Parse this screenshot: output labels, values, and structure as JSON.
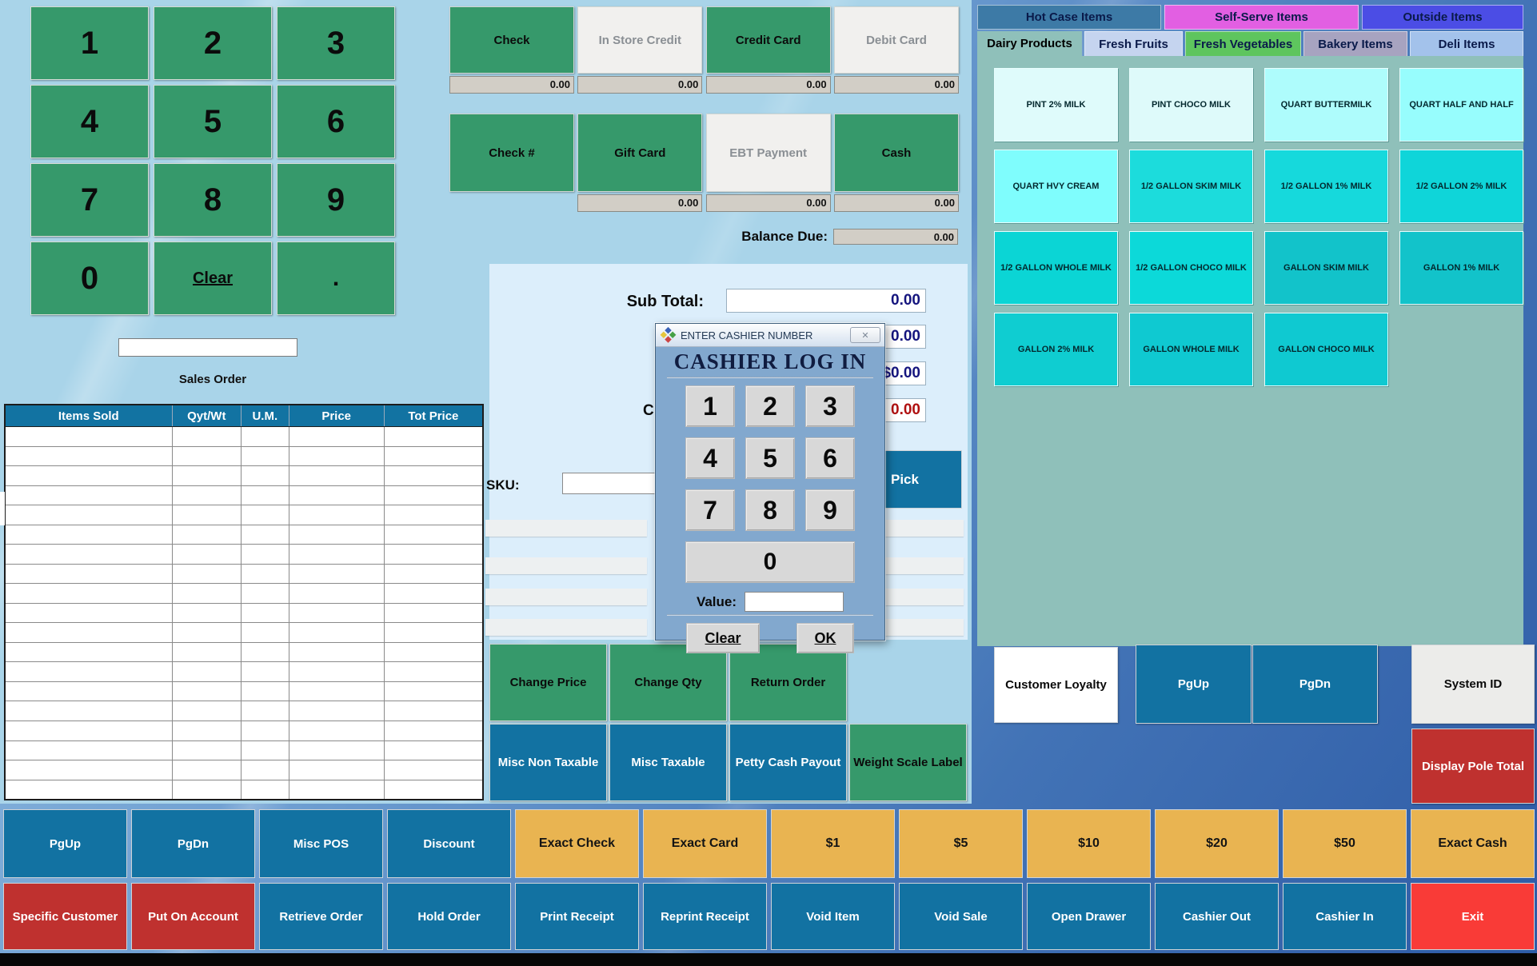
{
  "numpad": {
    "keys": [
      "1",
      "2",
      "3",
      "4",
      "5",
      "6",
      "7",
      "8",
      "9",
      "0",
      "Clear",
      "."
    ],
    "entry_value": "",
    "sales_order_label": "Sales Order"
  },
  "order_table": {
    "headers": [
      "Items Sold",
      "Qyt/Wt",
      "U.M.",
      "Price",
      "Tot Price"
    ],
    "empty_rows": 19
  },
  "payments": {
    "row1": [
      {
        "label": "Check",
        "style": "green",
        "amount": "0.00"
      },
      {
        "label": "In Store Credit",
        "style": "light",
        "amount": "0.00"
      },
      {
        "label": "Credit Card",
        "style": "green",
        "amount": "0.00"
      },
      {
        "label": "Debit Card",
        "style": "light",
        "amount": "0.00"
      }
    ],
    "row2": [
      {
        "label": "Check #",
        "style": "green",
        "amount": null
      },
      {
        "label": "Gift Card",
        "style": "green",
        "amount": "0.00"
      },
      {
        "label": "EBT Payment",
        "style": "light",
        "amount": "0.00"
      },
      {
        "label": "Cash",
        "style": "green",
        "amount": "0.00"
      }
    ],
    "balance_due_label": "Balance Due:",
    "balance_due_value": "0.00"
  },
  "totals": {
    "sub_total_label": "Sub Total:",
    "sub_total_value": "0.00",
    "tax_value": "0.00",
    "total_value": "$0.00",
    "change_label": "Change:",
    "change_value": "0.00"
  },
  "sku": {
    "label": "SKU:",
    "value": "",
    "pick_label": "Pick"
  },
  "mid_buttons": {
    "green_row": [
      {
        "label": "Change Price",
        "style": "green"
      },
      {
        "label": "Change Qty",
        "style": "green"
      },
      {
        "label": "Return Order",
        "style": "green"
      }
    ],
    "blue_row": [
      {
        "label": "Misc Non Taxable",
        "style": "blue"
      },
      {
        "label": "Misc Taxable",
        "style": "blue"
      },
      {
        "label": "Petty Cash Payout",
        "style": "blue"
      },
      {
        "label": "Weight Scale Label",
        "style": "green"
      }
    ]
  },
  "right_panel": {
    "top_tabs": [
      {
        "label": "Hot Case Items",
        "color": "#3d7aa6"
      },
      {
        "label": "Self-Serve Items",
        "color": "#e25fe2"
      },
      {
        "label": "Outside Items",
        "color": "#4b4de5"
      }
    ],
    "category_tabs": [
      {
        "label": "Dairy Products",
        "color": "#8fc0ba",
        "selected": true
      },
      {
        "label": "Fresh Fruits",
        "color": "#c5d4ef"
      },
      {
        "label": "Fresh Vegetables",
        "color": "#5ec55e"
      },
      {
        "label": "Bakery Items",
        "color": "#a7a3c0"
      },
      {
        "label": "Deli Items",
        "color": "#a3c2eb"
      }
    ],
    "products": [
      {
        "label": "PINT 2% MILK",
        "color": "#dffbfb"
      },
      {
        "label": "PINT CHOCO MILK",
        "color": "#defafa"
      },
      {
        "label": "QUART BUTTERMILK",
        "color": "#aefcfc"
      },
      {
        "label": "QUART HALF AND HALF",
        "color": "#97fdfd"
      },
      {
        "label": "QUART HVY CREAM",
        "color": "#7ffdfd"
      },
      {
        "label": "1/2 GALLON SKIM MILK",
        "color": "#1cdcdc"
      },
      {
        "label": "1/2 GALLON 1% MILK",
        "color": "#16d9dc"
      },
      {
        "label": "1/2 GALLON 2% MILK",
        "color": "#0fd5d9"
      },
      {
        "label": "1/2 GALLON WHOLE MILK",
        "color": "#0bd5d5"
      },
      {
        "label": "1/2 GALLON CHOCO MILK",
        "color": "#0cd9d9"
      },
      {
        "label": "GALLON SKIM MILK",
        "color": "#12c3ca"
      },
      {
        "label": "GALLON 1% MILK",
        "color": "#12c3ca"
      },
      {
        "label": "GALLON 2% MILK",
        "color": "#0fcdd1"
      },
      {
        "label": "GALLON WHOLE MILK",
        "color": "#0fc9d1"
      },
      {
        "label": "GALLON CHOCO MILK",
        "color": "#0fc9d1"
      }
    ],
    "side_buttons": {
      "customer_loyalty": "Customer Loyalty",
      "pgup": "PgUp",
      "pgdn": "PgDn",
      "system_id": "System ID",
      "display_pole_total": "Display Pole Total"
    }
  },
  "bottom_rows": {
    "row1": [
      {
        "label": "PgUp",
        "style": "blue"
      },
      {
        "label": "PgDn",
        "style": "blue"
      },
      {
        "label": "Misc POS",
        "style": "blue"
      },
      {
        "label": "Discount",
        "style": "blue"
      },
      {
        "label": "Exact Check",
        "style": "orange"
      },
      {
        "label": "Exact Card",
        "style": "orange"
      },
      {
        "label": "$1",
        "style": "orange"
      },
      {
        "label": "$5",
        "style": "orange"
      },
      {
        "label": "$10",
        "style": "orange"
      },
      {
        "label": "$20",
        "style": "orange"
      },
      {
        "label": "$50",
        "style": "orange"
      },
      {
        "label": "Exact Cash",
        "style": "orange"
      }
    ],
    "row2": [
      {
        "label": "Specific Customer",
        "style": "red"
      },
      {
        "label": "Put On Account",
        "style": "red"
      },
      {
        "label": "Retrieve Order",
        "style": "blue"
      },
      {
        "label": "Hold Order",
        "style": "blue"
      },
      {
        "label": "Print Receipt",
        "style": "blue"
      },
      {
        "label": "Reprint Receipt",
        "style": "blue"
      },
      {
        "label": "Void Item",
        "style": "blue"
      },
      {
        "label": "Void Sale",
        "style": "blue"
      },
      {
        "label": "Open Drawer",
        "style": "blue"
      },
      {
        "label": "Cashier Out",
        "style": "blue"
      },
      {
        "label": "Cashier In",
        "style": "blue"
      },
      {
        "label": "Exit",
        "style": "exit"
      }
    ]
  },
  "dialog": {
    "title": "ENTER CASHIER NUMBER",
    "heading": "CASHIER LOG IN",
    "keys": [
      "1",
      "2",
      "3",
      "4",
      "5",
      "6",
      "7",
      "8",
      "9"
    ],
    "zero_key": "0",
    "value_label": "Value:",
    "value": "",
    "clear_label": "Clear",
    "ok_label": "OK",
    "close_icon": "✕"
  },
  "colors": {
    "green_button": "#36996b",
    "blue_button": "#1272a2",
    "orange_button": "#e9b451",
    "red_button": "#bf312f",
    "exit_button": "#f93b37",
    "table_header": "#1273a2",
    "teal_panel": "#8fc0ba",
    "value_navy": "#15157e",
    "change_red": "#b01010"
  }
}
